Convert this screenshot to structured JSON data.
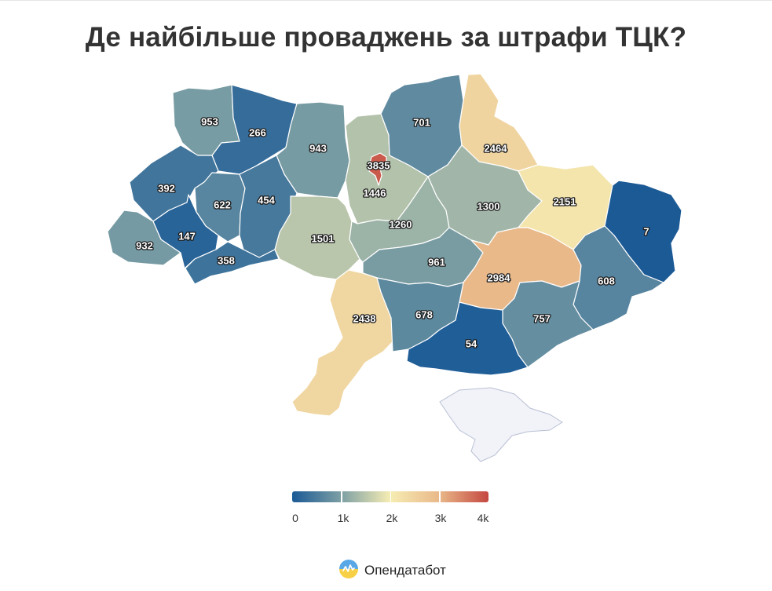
{
  "title": "Де найбільше проваджень за штрафи ТЦК?",
  "colors": {
    "scale": [
      "#1b5a96",
      "#7d9fa4",
      "#f6edb3",
      "#e9b889",
      "#c44740"
    ],
    "crimea": "#f2f3f8"
  },
  "regions": [
    {
      "name": "Volyn",
      "value": 953
    },
    {
      "name": "Rivne",
      "value": 266
    },
    {
      "name": "Zhytomyr",
      "value": 943
    },
    {
      "name": "Kyiv",
      "value": 1446
    },
    {
      "name": "Kyiv City",
      "value": 3835
    },
    {
      "name": "Chernihiv",
      "value": 701
    },
    {
      "name": "Sumy",
      "value": 2464
    },
    {
      "name": "Lviv",
      "value": 392
    },
    {
      "name": "Ternopil",
      "value": 622
    },
    {
      "name": "Khmelnytskyi",
      "value": 454
    },
    {
      "name": "Zakarpattia",
      "value": 932
    },
    {
      "name": "Ivano-Frankivsk",
      "value": 147
    },
    {
      "name": "Chernivtsi",
      "value": 358
    },
    {
      "name": "Vinnytsia",
      "value": 1501
    },
    {
      "name": "Cherkasy",
      "value": 1260
    },
    {
      "name": "Poltava",
      "value": 1300
    },
    {
      "name": "Kharkiv",
      "value": 2151
    },
    {
      "name": "Luhansk",
      "value": 7
    },
    {
      "name": "Kirovohrad",
      "value": 961
    },
    {
      "name": "Dnipropetrovsk",
      "value": 2984
    },
    {
      "name": "Donetsk",
      "value": 608
    },
    {
      "name": "Odesa",
      "value": 2438
    },
    {
      "name": "Mykolaiv",
      "value": 678
    },
    {
      "name": "Zaporizhzhia",
      "value": 757
    },
    {
      "name": "Kherson",
      "value": 54
    }
  ],
  "legend": {
    "min": 0,
    "max": 4000,
    "ticks": [
      "0",
      "1k",
      "2k",
      "3k",
      "4k"
    ]
  },
  "brand": {
    "name": "Опендатабот",
    "icon": "opendatabot-logo-icon"
  }
}
